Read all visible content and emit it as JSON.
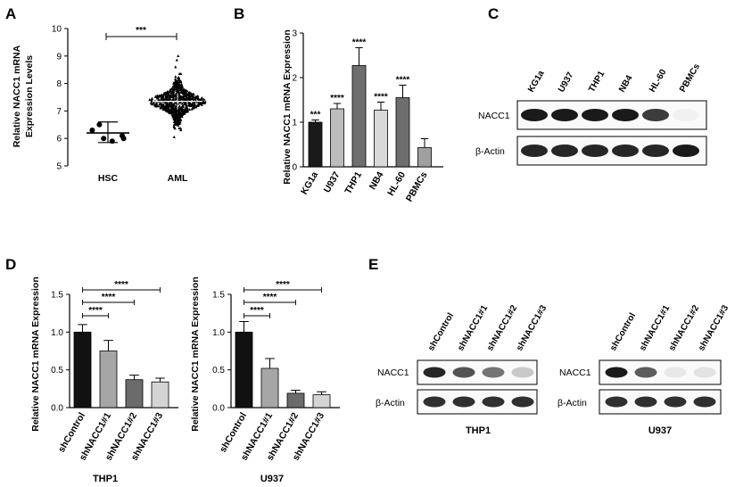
{
  "panel_labels": [
    "A",
    "B",
    "C",
    "D",
    "E"
  ],
  "chart_data": [
    {
      "id": "A",
      "type": "scatter",
      "ylabel_lines": [
        "Relative NACC1 mRNA",
        "Expression Levels"
      ],
      "categories": [
        "HSC",
        "AML"
      ],
      "ylim": [
        5,
        10
      ],
      "yticks": [
        "5",
        "6",
        "7",
        "8",
        "9",
        "10"
      ],
      "hsc_points": [
        6.5,
        6.3,
        6.1,
        6.0,
        5.9,
        6.0
      ],
      "hsc_mean": 6.2,
      "hsc_sd": [
        5.85,
        6.6
      ],
      "aml_mean": 7.35,
      "aml_sd": [
        7.05,
        7.65
      ],
      "aml_range": [
        6.0,
        9.0
      ],
      "significance": "***"
    },
    {
      "id": "B",
      "type": "bar",
      "ylabel": "Relative NACC1 mRNA Expression",
      "categories": [
        "KG1a",
        "U937",
        "THP1",
        "NB4",
        "HL-60",
        "PBMCs"
      ],
      "values": [
        1.0,
        1.3,
        2.27,
        1.27,
        1.55,
        0.43
      ],
      "errors": [
        0.05,
        0.12,
        0.4,
        0.18,
        0.28,
        0.2
      ],
      "colors": [
        "#1a1a1a",
        "#bdbdbd",
        "#6e6e6e",
        "#d9d9d9",
        "#6e6e6e",
        "#a0a0a0"
      ],
      "significance": [
        "***",
        "****",
        "****",
        "****",
        "****",
        ""
      ],
      "ylim": [
        0,
        3
      ],
      "yticks": [
        "0",
        "1",
        "2",
        "3"
      ]
    },
    {
      "id": "D-THP1",
      "type": "bar",
      "ylabel": "Relative NACC1 mRNA Expression",
      "categories": [
        "shControl",
        "shNACC1#1",
        "shNACC1#2",
        "shNACC1#3"
      ],
      "values": [
        1.0,
        0.75,
        0.37,
        0.34
      ],
      "errors": [
        0.1,
        0.14,
        0.06,
        0.05
      ],
      "colors": [
        "#111111",
        "#a6a6a6",
        "#6b6b6b",
        "#d4d4d4"
      ],
      "brackets": [
        "****",
        "****",
        "****"
      ],
      "ylim": [
        0,
        1.5
      ],
      "yticks": [
        "0.0",
        "0.5",
        "1.0",
        "1.5"
      ],
      "caption": "THP1"
    },
    {
      "id": "D-U937",
      "type": "bar",
      "ylabel": "Relative NACC1 mRNA Expression",
      "categories": [
        "shControl",
        "shNACC1#1",
        "shNACC1#2",
        "shNACC1#3"
      ],
      "values": [
        1.0,
        0.52,
        0.19,
        0.17
      ],
      "errors": [
        0.14,
        0.13,
        0.04,
        0.04
      ],
      "colors": [
        "#111111",
        "#a6a6a6",
        "#6b6b6b",
        "#d4d4d4"
      ],
      "brackets": [
        "****",
        "****",
        "****"
      ],
      "ylim": [
        0,
        1.5
      ],
      "yticks": [
        "0.0",
        "0.5",
        "1.0",
        "1.5"
      ],
      "caption": "U937"
    }
  ],
  "blot_C": {
    "lanes": [
      "KG1a",
      "U937",
      "THP1",
      "NB4",
      "HL-60",
      "PBMCs"
    ],
    "rows": [
      {
        "label": "NACC1",
        "intensity": [
          1.0,
          1.0,
          1.0,
          1.0,
          0.85,
          0.03
        ]
      },
      {
        "label": "β-Actin",
        "intensity": [
          0.95,
          0.95,
          0.95,
          0.95,
          0.95,
          1.0
        ]
      }
    ]
  },
  "blot_E": [
    {
      "lanes": [
        "shControl",
        "shNACC1#1",
        "shNACC1#2",
        "shNACC1#3"
      ],
      "rows": [
        {
          "label": "NACC1",
          "intensity": [
            0.95,
            0.75,
            0.6,
            0.22
          ]
        },
        {
          "label": "β-Actin",
          "intensity": [
            0.9,
            0.9,
            0.9,
            0.9
          ]
        }
      ],
      "caption": "THP1"
    },
    {
      "lanes": [
        "shControl",
        "shNACC1#1",
        "shNACC1#2",
        "shNACC1#3"
      ],
      "rows": [
        {
          "label": "NACC1",
          "intensity": [
            1.0,
            0.7,
            0.08,
            0.1
          ]
        },
        {
          "label": "β-Actin",
          "intensity": [
            0.9,
            0.9,
            0.9,
            0.9
          ]
        }
      ],
      "caption": "U937"
    }
  ]
}
